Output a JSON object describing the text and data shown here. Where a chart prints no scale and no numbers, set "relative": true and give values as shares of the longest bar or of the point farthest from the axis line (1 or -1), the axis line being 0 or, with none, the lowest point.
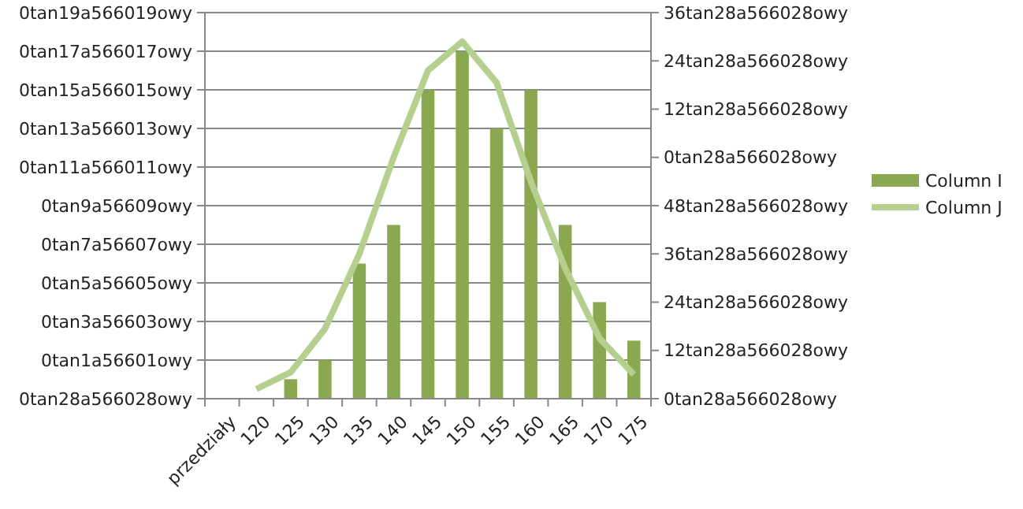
{
  "chart_data": {
    "type": "bar",
    "relative": true,
    "categories": [
      "przedziały",
      "120",
      "125",
      "130",
      "135",
      "140",
      "145",
      "150",
      "155",
      "160",
      "165",
      "170",
      "175"
    ],
    "series": [
      {
        "name": "Column I",
        "color": "#8aa84f",
        "values": [
          null,
          null,
          0.056,
          0.111,
          0.389,
          0.5,
          0.889,
          1,
          0.778,
          0.889,
          0.5,
          0.278,
          0.167
        ]
      },
      {
        "name": "Column J",
        "type": "line",
        "axis": "y2",
        "color": "#b5cf8f",
        "values": [
          null,
          0.027,
          0.074,
          0.196,
          0.405,
          0.676,
          0.919,
          1,
          0.885,
          0.608,
          0.365,
          0.169,
          0.068
        ]
      }
    ],
    "annotations": [
      "0tan28a566028owy",
      "0tan1a56601owy",
      "0tan3a56603owy",
      "0tan5a56605owy",
      "0tan7a56607owy",
      "0tan9a56609owy",
      "0tan11a566011owy",
      "0tan13a566013owy",
      "0tan15a566015owy",
      "0tan17a566017owy",
      "0tan19a566019owy",
      "0tan28a566028owy",
      "12tan28a566028owy",
      "24tan28a566028owy",
      "36tan28a566028owy",
      "48tan28a566028owy",
      "0tan28a566028owy",
      "12tan28a566028owy",
      "24tan28a566028owy",
      "36tan28a566028owy"
    ],
    "grid": "y",
    "legend": "right"
  }
}
